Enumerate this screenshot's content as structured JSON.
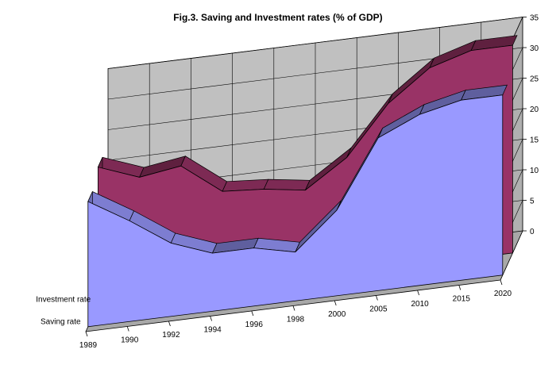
{
  "chart_data": {
    "type": "area",
    "title": "Fig.3. Saving and Investment rates (% of GDP)",
    "categories": [
      "1989",
      "1990",
      "1992",
      "1994",
      "1996",
      "1998",
      "2000",
      "2005",
      "2010",
      "2015",
      "2020"
    ],
    "series": [
      {
        "name": "Investment rate",
        "color": "#993366",
        "values": [
          22.5,
          20,
          21,
          16,
          15.5,
          14.5,
          19,
          27,
          32,
          34,
          34
        ]
      },
      {
        "name": "Saving rate",
        "color": "#9999ff",
        "values": [
          20.5,
          16.5,
          12,
          9.5,
          9.5,
          8,
          14,
          25,
          28,
          29.5,
          29.5
        ]
      }
    ],
    "ylim": [
      0,
      35
    ],
    "yticks": [
      "0",
      "5",
      "10",
      "15",
      "20",
      "25",
      "30",
      "35"
    ],
    "xlabel": "",
    "ylabel": "",
    "grid": true,
    "style": "3d-area",
    "wall_color": "#c0c0c0"
  }
}
